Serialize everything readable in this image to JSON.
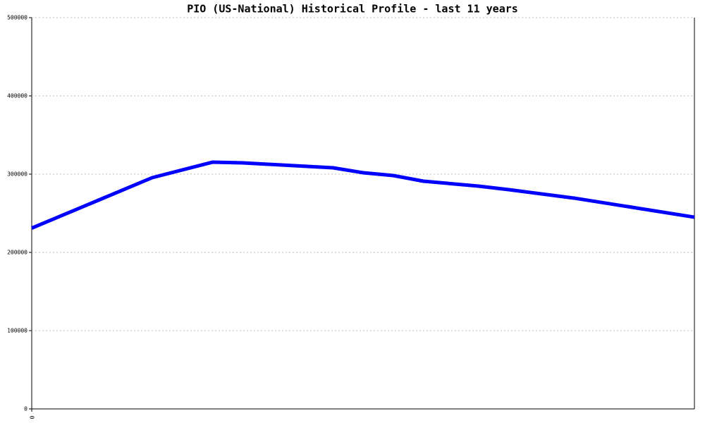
{
  "chart_data": {
    "type": "line",
    "title": "PIO (US-National) Historical Profile - last 11 years",
    "x": [
      0,
      24,
      36,
      42,
      60,
      66,
      72,
      78,
      89,
      95,
      108,
      132
    ],
    "series": [
      {
        "color": "#0000ff",
        "values": [
          231000,
          295500,
          315300,
          314400,
          308100,
          301800,
          298200,
          291000,
          284700,
          280200,
          269400,
          245000
        ]
      }
    ],
    "xlim": [
      0,
      132
    ],
    "xticks": [
      0
    ],
    "ylim": [
      0,
      500000
    ],
    "yticks": [
      0,
      100000,
      200000,
      300000,
      400000,
      500000
    ],
    "grid": true
  }
}
